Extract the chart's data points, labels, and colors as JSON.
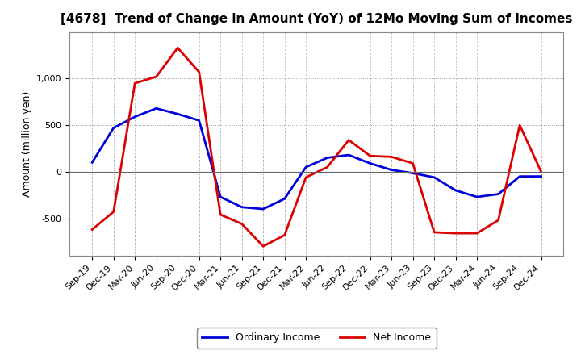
{
  "title": "[4678]  Trend of Change in Amount (YoY) of 12Mo Moving Sum of Incomes",
  "ylabel": "Amount (million yen)",
  "background_color": "#ffffff",
  "plot_background": "#ffffff",
  "grid_color": "#999999",
  "x_labels": [
    "Sep-19",
    "Dec-19",
    "Mar-20",
    "Jun-20",
    "Sep-20",
    "Dec-20",
    "Mar-21",
    "Jun-21",
    "Sep-21",
    "Dec-21",
    "Mar-22",
    "Jun-22",
    "Sep-22",
    "Dec-22",
    "Mar-23",
    "Jun-23",
    "Sep-23",
    "Dec-23",
    "Mar-24",
    "Jun-24",
    "Sep-24",
    "Dec-24"
  ],
  "ordinary_income": [
    100,
    470,
    590,
    680,
    620,
    550,
    -270,
    -380,
    -400,
    -290,
    50,
    150,
    180,
    90,
    20,
    -15,
    -60,
    -200,
    -270,
    -240,
    -50,
    -50
  ],
  "net_income": [
    -620,
    -430,
    950,
    1020,
    1330,
    1070,
    -460,
    -560,
    -800,
    -680,
    -60,
    50,
    340,
    170,
    160,
    90,
    -650,
    -660,
    -660,
    -520,
    500,
    0
  ],
  "ylim": [
    -900,
    1500
  ],
  "yticks": [
    -500,
    0,
    500,
    1000
  ],
  "ordinary_color": "#0000dd",
  "net_color": "#dd0000",
  "line_width": 2.0,
  "title_fontsize": 11,
  "ylabel_fontsize": 9,
  "tick_fontsize": 8
}
